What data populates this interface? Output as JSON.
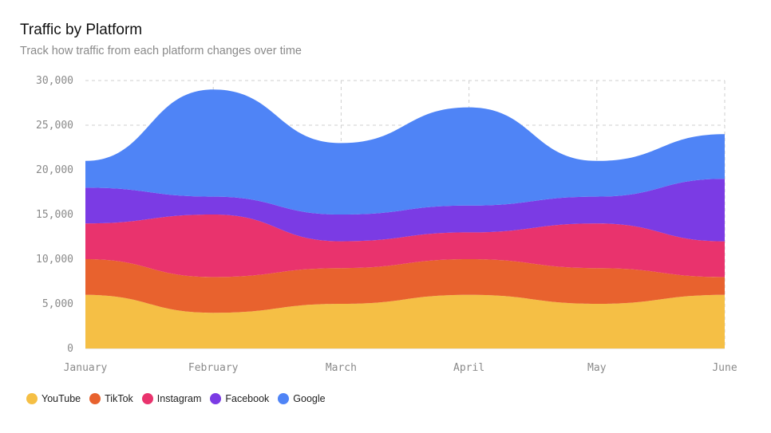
{
  "header": {
    "title": "Traffic by Platform",
    "subtitle": "Track how traffic from each platform changes over time"
  },
  "chart_data": {
    "type": "area",
    "stacked": true,
    "title": "Traffic by Platform",
    "subtitle": "Track how traffic from each platform changes over time",
    "categories": [
      "January",
      "February",
      "March",
      "April",
      "May",
      "June"
    ],
    "ylim": [
      0,
      30000
    ],
    "yticks": [
      0,
      5000,
      10000,
      15000,
      20000,
      25000,
      30000
    ],
    "ytick_labels": [
      "0",
      "5,000",
      "10,000",
      "15,000",
      "20,000",
      "25,000",
      "30,000"
    ],
    "grid": true,
    "legend": "bottom-left",
    "series": [
      {
        "name": "YouTube",
        "color": "#F5BF45",
        "values": [
          6000,
          4000,
          5000,
          6000,
          5000,
          6000
        ]
      },
      {
        "name": "TikTok",
        "color": "#E8622E",
        "values": [
          4000,
          4000,
          4000,
          4000,
          4000,
          2000
        ]
      },
      {
        "name": "Instagram",
        "color": "#E9336D",
        "values": [
          4000,
          7000,
          3000,
          3000,
          5000,
          4000
        ]
      },
      {
        "name": "Facebook",
        "color": "#7B3BE4",
        "values": [
          4000,
          2000,
          3000,
          3000,
          3000,
          7000
        ]
      },
      {
        "name": "Google",
        "color": "#4F84F6",
        "values": [
          3000,
          12000,
          8000,
          11000,
          4000,
          5000
        ]
      }
    ]
  }
}
